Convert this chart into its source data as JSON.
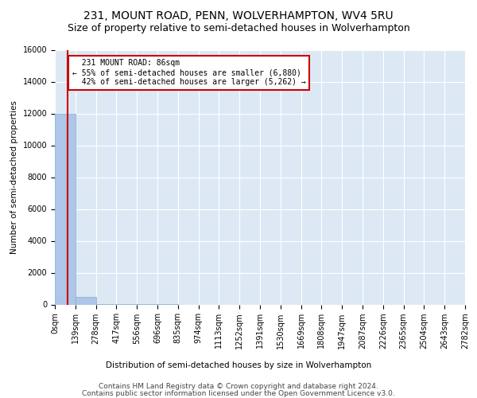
{
  "title": "231, MOUNT ROAD, PENN, WOLVERHAMPTON, WV4 5RU",
  "subtitle": "Size of property relative to semi-detached houses in Wolverhampton",
  "xlabel_distribution": "Distribution of semi-detached houses by size in Wolverhampton",
  "ylabel": "Number of semi-detached properties",
  "footer_line1": "Contains HM Land Registry data © Crown copyright and database right 2024.",
  "footer_line2": "Contains public sector information licensed under the Open Government Licence v3.0.",
  "property_size": 86,
  "property_label": "231 MOUNT ROAD: 86sqm",
  "pct_smaller": 55,
  "pct_larger": 42,
  "n_smaller": 6880,
  "n_larger": 5262,
  "bin_edges": [
    0,
    139,
    278,
    417,
    556,
    696,
    835,
    974,
    1113,
    1252,
    1391,
    1530,
    1669,
    1808,
    1947,
    2087,
    2226,
    2365,
    2504,
    2643,
    2782
  ],
  "bin_counts": [
    12000,
    500,
    5,
    2,
    1,
    1,
    0,
    0,
    0,
    0,
    0,
    0,
    0,
    0,
    0,
    0,
    0,
    0,
    0,
    0
  ],
  "bar_color": "#aec6e8",
  "bar_edge_color": "#7bafd4",
  "vline_color": "#cc0000",
  "vline_x": 86,
  "box_color": "#cc0000",
  "bg_color": "#dce9f5",
  "ylim": [
    0,
    16000
  ],
  "yticks": [
    0,
    2000,
    4000,
    6000,
    8000,
    10000,
    12000,
    14000,
    16000
  ],
  "grid_color": "#ffffff",
  "title_fontsize": 10,
  "subtitle_fontsize": 9,
  "axis_fontsize": 7.5,
  "tick_fontsize": 7,
  "annotation_fontsize": 7,
  "footer_fontsize": 6.5
}
